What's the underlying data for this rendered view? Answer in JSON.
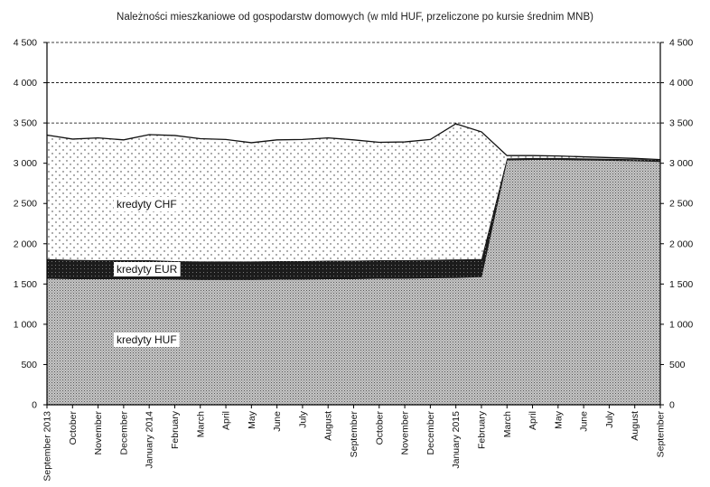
{
  "chart_data": {
    "type": "area",
    "stacked": true,
    "title": "Należności mieszkaniowe od gospodarstw domowych (w mld HUF, przeliczone po kursie średnim MNB)",
    "xlabel": "",
    "ylabel": "",
    "ylim": [
      0,
      4500
    ],
    "yticks": [
      0,
      500,
      1000,
      1500,
      2000,
      2500,
      3000,
      3500,
      4000,
      4500
    ],
    "ytick_labels": [
      "0",
      "500",
      "1 000",
      "1 500",
      "2 000",
      "2 500",
      "3 000",
      "3 500",
      "4 000",
      "4 500"
    ],
    "secondary_y_axis": true,
    "grid": "horizontal dashed",
    "categories": [
      "September 2013",
      "October",
      "November",
      "December",
      "January 2014",
      "February",
      "March",
      "April",
      "May",
      "June",
      "July",
      "August",
      "September",
      "October",
      "November",
      "December",
      "January 2015",
      "February",
      "March",
      "April",
      "May",
      "June",
      "July",
      "August",
      "September"
    ],
    "series": [
      {
        "name": "kredyty HUF",
        "pattern": "dense-dots",
        "color": "#9a9a9a",
        "values": [
          1570,
          1565,
          1565,
          1565,
          1565,
          1560,
          1555,
          1555,
          1555,
          1560,
          1560,
          1565,
          1565,
          1570,
          1570,
          1575,
          1580,
          1590,
          3040,
          3045,
          3045,
          3040,
          3035,
          3030,
          3020
        ]
      },
      {
        "name": "kredyty EUR",
        "pattern": "solid-dark",
        "color": "#1a1a1a",
        "values": [
          240,
          235,
          230,
          230,
          230,
          225,
          225,
          225,
          225,
          225,
          225,
          225,
          225,
          225,
          225,
          225,
          225,
          220,
          20,
          20,
          20,
          20,
          20,
          20,
          20
        ]
      },
      {
        "name": "kredyty CHF",
        "pattern": "sparse-dots",
        "color": "#ffffff",
        "values": [
          1540,
          1500,
          1520,
          1495,
          1560,
          1560,
          1525,
          1515,
          1475,
          1505,
          1510,
          1525,
          1500,
          1465,
          1470,
          1495,
          1685,
          1580,
          35,
          30,
          25,
          20,
          15,
          10,
          5
        ]
      }
    ],
    "labels": {
      "huf": "kredyty HUF",
      "eur": "kredyty EUR",
      "chf": "kredyty CHF"
    }
  }
}
